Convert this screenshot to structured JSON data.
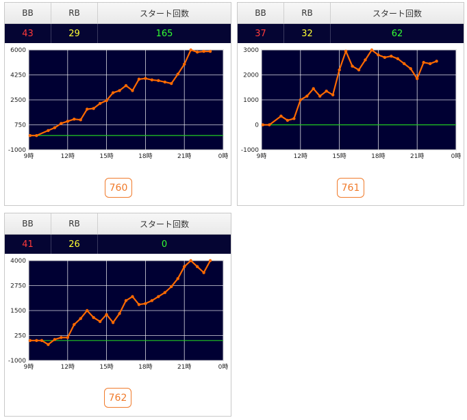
{
  "header": {
    "bb": "BB",
    "rb": "RB",
    "start": "スタート回数"
  },
  "colors": {
    "bg": "#000033",
    "line": "#ff6a00",
    "zero": "#22cc22",
    "grid": "#ffffff",
    "bb": "#ff3a3a",
    "rb": "#ffff33",
    "start": "#33ff33"
  },
  "machines": [
    {
      "number": "760",
      "bb": "43",
      "rb": "29",
      "start": "165"
    },
    {
      "number": "761",
      "bb": "37",
      "rb": "32",
      "start": "62"
    },
    {
      "number": "762",
      "bb": "41",
      "rb": "26",
      "start": "0"
    }
  ],
  "chart_data": [
    {
      "type": "line",
      "x_tick_labels": [
        "9時",
        "12時",
        "15時",
        "18時",
        "21時",
        "0時"
      ],
      "xlim": [
        9,
        24
      ],
      "ylim": [
        -1000,
        6000
      ],
      "y_tick_labels": [
        "6000",
        "4250",
        "2500",
        "750",
        "-1000"
      ],
      "y_ticks": [
        6000,
        4250,
        2500,
        750,
        -1000
      ],
      "grid": true,
      "reference_line": 0,
      "series": [
        {
          "x": [
            9.1,
            9.6,
            10.5,
            11.0,
            11.5,
            12.0,
            12.5,
            13.0,
            13.5,
            14.0,
            14.5,
            15.0,
            15.5,
            16.0,
            16.5,
            17.0,
            17.5,
            18.0,
            18.5,
            19.0,
            19.5,
            20.0,
            20.5,
            21.0,
            21.5,
            22.0,
            22.5,
            23.0
          ],
          "y": [
            0,
            0,
            350,
            550,
            850,
            1000,
            1150,
            1100,
            1850,
            1900,
            2250,
            2450,
            3000,
            3150,
            3500,
            3150,
            3950,
            4000,
            3900,
            3850,
            3750,
            3650,
            4300,
            5000,
            6000,
            5850,
            5900,
            5900
          ]
        }
      ]
    },
    {
      "type": "line",
      "x_tick_labels": [
        "9時",
        "12時",
        "15時",
        "18時",
        "21時",
        "0時"
      ],
      "xlim": [
        9,
        24
      ],
      "ylim": [
        -1000,
        3000
      ],
      "y_tick_labels": [
        "3000",
        "2000",
        "1000",
        "0",
        "-1000"
      ],
      "y_ticks": [
        3000,
        2000,
        1000,
        0,
        -1000
      ],
      "grid": true,
      "reference_line": 0,
      "series": [
        {
          "x": [
            9.1,
            9.6,
            10.5,
            11.0,
            11.5,
            12.0,
            12.5,
            13.0,
            13.5,
            14.0,
            14.5,
            15.0,
            15.5,
            16.0,
            16.5,
            17.0,
            17.5,
            18.0,
            18.5,
            19.0,
            19.5,
            20.0,
            20.5,
            21.0,
            21.5,
            22.0,
            22.5
          ],
          "y": [
            0,
            0,
            350,
            180,
            250,
            1000,
            1150,
            1450,
            1150,
            1350,
            1200,
            2200,
            2950,
            2350,
            2200,
            2600,
            3000,
            2800,
            2700,
            2750,
            2650,
            2450,
            2250,
            1850,
            2500,
            2450,
            2550
          ]
        }
      ]
    },
    {
      "type": "line",
      "x_tick_labels": [
        "9時",
        "12時",
        "15時",
        "18時",
        "21時",
        "0時"
      ],
      "xlim": [
        9,
        24
      ],
      "ylim": [
        -1000,
        4000
      ],
      "y_tick_labels": [
        "4000",
        "2750",
        "1500",
        "250",
        "-1000"
      ],
      "y_ticks": [
        4000,
        2750,
        1500,
        250,
        -1000
      ],
      "grid": true,
      "reference_line": 0,
      "series": [
        {
          "x": [
            9.1,
            9.6,
            10.0,
            10.5,
            11.0,
            11.5,
            12.0,
            12.5,
            13.0,
            13.5,
            14.0,
            14.5,
            15.0,
            15.5,
            16.0,
            16.5,
            17.0,
            17.5,
            18.0,
            18.5,
            19.0,
            19.5,
            20.0,
            20.5,
            21.0,
            21.5,
            22.0,
            22.5,
            23.0
          ],
          "y": [
            0,
            0,
            0,
            -200,
            50,
            150,
            150,
            800,
            1100,
            1500,
            1150,
            950,
            1300,
            900,
            1350,
            2000,
            2200,
            1800,
            1850,
            2000,
            2200,
            2400,
            2700,
            3100,
            3700,
            4000,
            3700,
            3400,
            4000
          ]
        }
      ]
    }
  ]
}
